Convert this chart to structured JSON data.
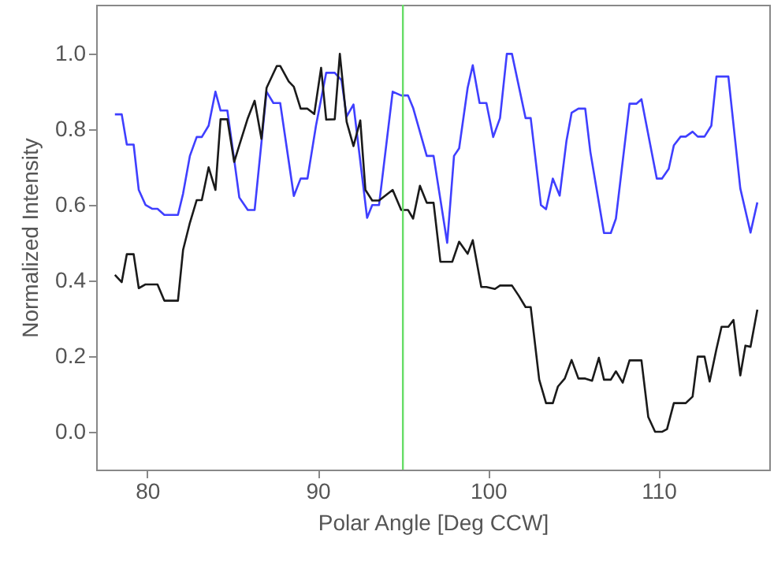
{
  "chart_data": {
    "type": "line",
    "xlabel": "Polar Angle [Deg CCW]",
    "ylabel": "Normalized Intensity",
    "xlim": [
      77,
      116.5
    ],
    "ylim": [
      -0.1,
      1.13
    ],
    "xticks": [
      80,
      90,
      100,
      110
    ],
    "yticks": [
      {
        "value": 0,
        "label": "0.0"
      },
      {
        "value": 0.2,
        "label": "0.2"
      },
      {
        "value": 0.4,
        "label": "0.4"
      },
      {
        "value": 0.6,
        "label": "0.6"
      },
      {
        "value": 0.8,
        "label": "0.8"
      },
      {
        "value": 1.0,
        "label": "1.0"
      }
    ],
    "grid": false,
    "ref_lines": [
      {
        "axis": "x",
        "value": 95,
        "color": "#66dd66"
      }
    ],
    "series": [
      {
        "color": "#3f3fff",
        "x": [
          78.1,
          78.5,
          78.8,
          79.2,
          79.5,
          79.9,
          80.3,
          80.6,
          81.0,
          81.8,
          82.1,
          82.5,
          82.9,
          83.2,
          83.6,
          84.0,
          84.3,
          84.7,
          85.1,
          85.4,
          85.9,
          86.3,
          87.0,
          87.4,
          87.8,
          88.6,
          89.0,
          89.4,
          89.9,
          90.5,
          91.0,
          91.4,
          91.7,
          92.1,
          92.9,
          93.2,
          93.6,
          94.4,
          94.9,
          95.3,
          95.6,
          96.4,
          96.8,
          97.6,
          98.0,
          98.3,
          98.8,
          99.1,
          99.5,
          99.9,
          100.3,
          100.7,
          101.1,
          101.4,
          102.2,
          102.5,
          103.1,
          103.4,
          103.8,
          104.2,
          104.6,
          104.9,
          105.3,
          105.7,
          106.0,
          106.8,
          107.2,
          107.5,
          108.3,
          108.7,
          109.0,
          109.9,
          110.2,
          110.6,
          110.9,
          111.3,
          111.6,
          112.0,
          112.3,
          112.7,
          113.1,
          113.4,
          114.1,
          114.8,
          115.4,
          115.8
        ],
        "values": [
          0.84,
          0.84,
          0.76,
          0.76,
          0.64,
          0.6,
          0.59,
          0.59,
          0.574,
          0.574,
          0.63,
          0.73,
          0.78,
          0.78,
          0.81,
          0.9,
          0.85,
          0.85,
          0.72,
          0.62,
          0.587,
          0.587,
          0.9,
          0.87,
          0.87,
          0.624,
          0.67,
          0.67,
          0.81,
          0.95,
          0.95,
          0.93,
          0.834,
          0.866,
          0.566,
          0.6,
          0.6,
          0.9,
          0.89,
          0.89,
          0.857,
          0.73,
          0.73,
          0.5,
          0.73,
          0.75,
          0.91,
          0.97,
          0.87,
          0.87,
          0.78,
          0.83,
          1.0,
          1.0,
          0.83,
          0.83,
          0.6,
          0.589,
          0.67,
          0.625,
          0.77,
          0.844,
          0.855,
          0.855,
          0.741,
          0.526,
          0.526,
          0.564,
          0.868,
          0.868,
          0.88,
          0.67,
          0.67,
          0.696,
          0.758,
          0.781,
          0.781,
          0.794,
          0.781,
          0.781,
          0.81,
          0.94,
          0.94,
          0.644,
          0.527,
          0.607
        ]
      },
      {
        "color": "#1a1a1a",
        "x": [
          78.1,
          78.5,
          78.8,
          79.2,
          79.5,
          79.9,
          80.6,
          81.0,
          81.8,
          82.1,
          82.5,
          82.9,
          83.2,
          83.6,
          84.0,
          84.3,
          84.7,
          85.1,
          85.4,
          85.9,
          86.3,
          86.7,
          87.0,
          87.6,
          87.8,
          88.3,
          88.6,
          89.0,
          89.4,
          89.8,
          90.2,
          90.5,
          91.0,
          91.3,
          91.7,
          92.1,
          92.5,
          92.8,
          93.2,
          93.6,
          94.4,
          94.9,
          95.3,
          95.6,
          96.0,
          96.4,
          96.8,
          97.2,
          97.9,
          98.3,
          98.8,
          99.1,
          99.6,
          99.9,
          100.4,
          100.7,
          101.4,
          101.8,
          102.2,
          102.5,
          103.0,
          103.4,
          103.8,
          104.1,
          104.5,
          104.9,
          105.3,
          105.7,
          106.1,
          106.5,
          106.8,
          107.2,
          107.5,
          107.9,
          108.3,
          109.0,
          109.4,
          109.8,
          110.2,
          110.5,
          110.9,
          111.6,
          112.0,
          112.3,
          112.7,
          113.0,
          113.4,
          113.7,
          114.1,
          114.4,
          114.8,
          115.1,
          115.4,
          115.8
        ],
        "values": [
          0.415,
          0.396,
          0.47,
          0.47,
          0.38,
          0.39,
          0.39,
          0.347,
          0.347,
          0.481,
          0.553,
          0.613,
          0.613,
          0.7,
          0.64,
          0.827,
          0.827,
          0.714,
          0.758,
          0.83,
          0.876,
          0.775,
          0.91,
          0.968,
          0.968,
          0.927,
          0.913,
          0.855,
          0.855,
          0.841,
          0.963,
          0.826,
          0.827,
          1.0,
          0.82,
          0.756,
          0.824,
          0.64,
          0.612,
          0.612,
          0.64,
          0.587,
          0.587,
          0.564,
          0.651,
          0.606,
          0.606,
          0.45,
          0.45,
          0.503,
          0.471,
          0.507,
          0.383,
          0.383,
          0.378,
          0.387,
          0.387,
          0.36,
          0.33,
          0.33,
          0.138,
          0.076,
          0.076,
          0.12,
          0.141,
          0.19,
          0.141,
          0.141,
          0.135,
          0.196,
          0.138,
          0.138,
          0.16,
          0.13,
          0.189,
          0.189,
          0.039,
          0.0,
          0.0,
          0.007,
          0.076,
          0.076,
          0.093,
          0.199,
          0.199,
          0.133,
          0.219,
          0.278,
          0.278,
          0.296,
          0.149,
          0.228,
          0.225,
          0.323
        ]
      }
    ]
  }
}
